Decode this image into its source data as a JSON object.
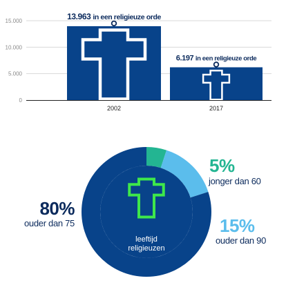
{
  "colors": {
    "navy": "#08438a",
    "text_dark": "#0b2a5c",
    "teal": "#23b592",
    "light_blue": "#5bbdec",
    "cross_green": "#3ee84b",
    "axis_gray": "#8a8a8a"
  },
  "chart_data": [
    {
      "type": "bar",
      "categories": [
        "2002",
        "2017"
      ],
      "values": [
        13963,
        6197
      ],
      "data_labels": [
        "13.963 in een religieuze orde",
        "6.197 in een religieuze orde"
      ],
      "yticks": [
        0,
        5000,
        10000,
        15000
      ],
      "ytick_labels": [
        "0",
        "5.000",
        "10.000",
        "15.000"
      ],
      "ylim": [
        0,
        15000
      ],
      "icons": [
        "cross-icon",
        "cross-icon"
      ]
    },
    {
      "type": "pie",
      "variant": "donut",
      "center_label": [
        "leeftijd",
        "religieuzen"
      ],
      "center_icon": "cross-icon",
      "slices": [
        {
          "value": 80,
          "label": "80%",
          "description": "ouder dan 75",
          "color": "#08438a"
        },
        {
          "value": 5,
          "label": "5%",
          "description": "jonger dan 60",
          "color": "#23b592"
        },
        {
          "value": 15,
          "label": "15%",
          "description": "ouder dan 90",
          "color": "#5bbdec"
        }
      ]
    }
  ]
}
